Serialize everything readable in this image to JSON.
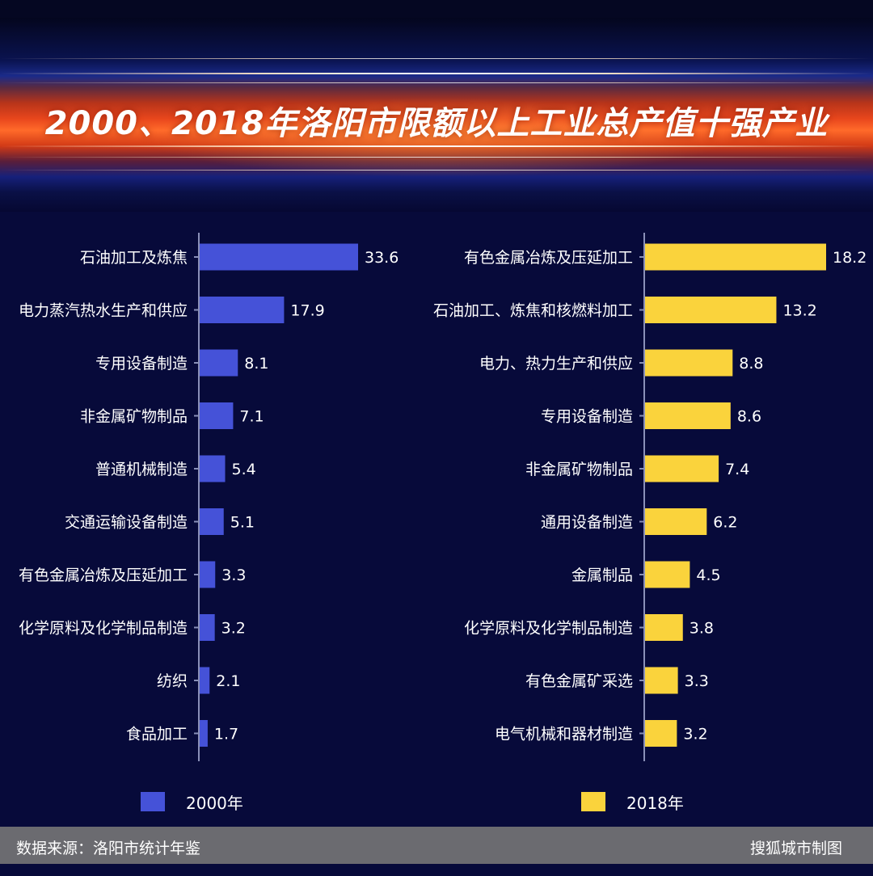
{
  "title": "2000、2018年洛阳市限额以上工业总产值十强产业",
  "colors": {
    "series_2000": "#4552d8",
    "series_2018": "#fad33c",
    "background": "#070a3a",
    "footer": "#6b6b70"
  },
  "chart_data": [
    {
      "type": "bar",
      "orientation": "horizontal",
      "title": "",
      "categories": [
        "石油加工及炼焦",
        "电力蒸汽热水生产和供应",
        "专用设备制造",
        "非金属矿物制品",
        "普通机械制造",
        "交通运输设备制造",
        "有色金属冶炼及压延加工",
        "化学原料及化学制品制造",
        "纺织",
        "食品加工"
      ],
      "series": [
        {
          "name": "2000年",
          "values": [
            33.6,
            17.9,
            8.1,
            7.1,
            5.4,
            5.1,
            3.3,
            3.2,
            2.1,
            1.7
          ]
        }
      ],
      "xlim": [
        0,
        33.6
      ],
      "grid": false
    },
    {
      "type": "bar",
      "orientation": "horizontal",
      "title": "",
      "categories": [
        "有色金属冶炼及压延加工",
        "石油加工、炼焦和核燃料加工",
        "电力、热力生产和供应",
        "专用设备制造",
        "非金属矿物制品",
        "通用设备制造",
        "金属制品",
        "化学原料及化学制品制造",
        "有色金属矿采选",
        "电气机械和器材制造"
      ],
      "series": [
        {
          "name": "2018年",
          "values": [
            18.2,
            13.2,
            8.8,
            8.6,
            7.4,
            6.2,
            4.5,
            3.8,
            3.3,
            3.2
          ]
        }
      ],
      "xlim": [
        0,
        18.2
      ],
      "grid": false
    }
  ],
  "legend": {
    "item_2000": "2000年",
    "item_2018": "2018年"
  },
  "footer": {
    "source": "数据来源：洛阳市统计年鉴",
    "credit": "搜狐城市制图"
  }
}
